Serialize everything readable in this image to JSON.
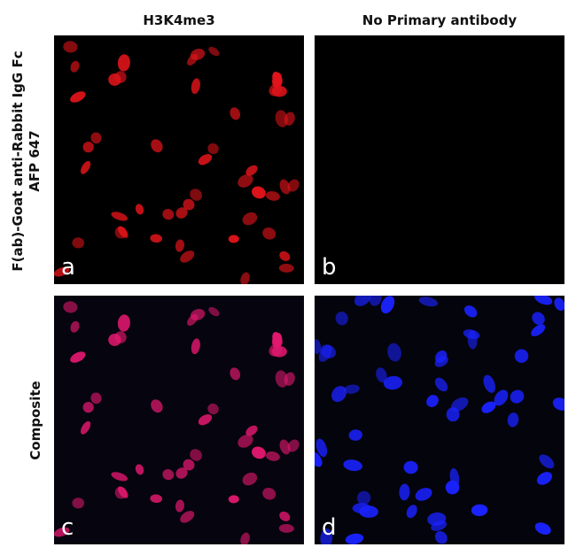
{
  "columns": [
    "H3K4me3",
    "No Primary antibody"
  ],
  "rows": [
    "F(ab)-Goat anti-Rabbit IgG Fc AFP 647",
    "Composite"
  ],
  "row_label_lines": [
    [
      "F(ab)-Goat anti-Rabbit IgG Fc",
      "AFP 647"
    ],
    [
      "Composite"
    ]
  ],
  "panels": [
    {
      "letter": "a",
      "channel": "red",
      "color": "#e0141a",
      "background": "#000000"
    },
    {
      "letter": "b",
      "channel": "none",
      "color": "#000000",
      "background": "#000000"
    },
    {
      "letter": "c",
      "channel": "composite",
      "color": "#e0186e",
      "background": "#06040e"
    },
    {
      "letter": "d",
      "channel": "blue",
      "color": "#1a22ff",
      "background": "#04040c"
    }
  ]
}
